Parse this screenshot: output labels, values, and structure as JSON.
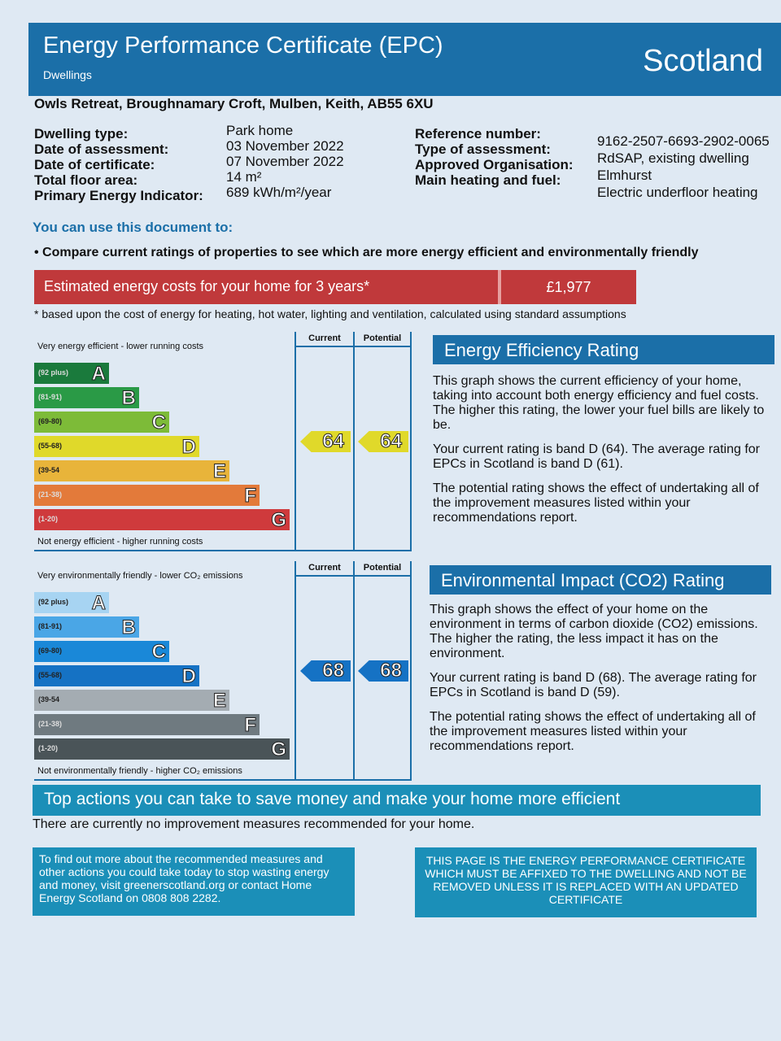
{
  "header": {
    "title": "Energy Performance Certificate (EPC)",
    "subtitle": "Dwellings",
    "region": "Scotland"
  },
  "address": "Owls Retreat, Broughnamary Croft, Mulben, Keith, AB55 6XU",
  "details_left": [
    {
      "label": "Dwelling type:",
      "value": "Park home"
    },
    {
      "label": "Date of assessment:",
      "value": "03 November 2022"
    },
    {
      "label": "Date of certificate:",
      "value": "07 November 2022"
    },
    {
      "label": "Total floor area:",
      "value": "14 m²"
    },
    {
      "label": "Primary Energy Indicator:",
      "value": "689 kWh/m²/year"
    }
  ],
  "details_right": [
    {
      "label": "Reference number:",
      "value": "9162-2507-6693-2902-0065"
    },
    {
      "label": "Type of assessment:",
      "value": "RdSAP, existing dwelling"
    },
    {
      "label": "Approved Organisation:",
      "value": "Elmhurst"
    },
    {
      "label": "Main heating and fuel:",
      "value": "Electric underfloor heating"
    }
  ],
  "use_heading": "You can use this document to:",
  "use_bullet": "Compare current ratings of properties to see which are more energy efficient and environmentally friendly",
  "cost": {
    "label": "Estimated energy costs for your home for 3 years*",
    "value": "£1,977"
  },
  "cost_note": "* based upon the cost of energy for heating, hot water, lighting and ventilation, calculated using standard assumptions",
  "energy": {
    "top": "Very energy efficient - lower running costs",
    "bottom": "Not energy efficient - higher running costs",
    "current_label": "Current",
    "potential_label": "Potential",
    "current": "64",
    "potential": "64",
    "current_band": 3,
    "potential_band": 3,
    "bands": [
      {
        "range": "(92 plus)",
        "letter": "A",
        "color": "#1a7a3c"
      },
      {
        "range": "(81-91)",
        "letter": "B",
        "color": "#2a9a46"
      },
      {
        "range": "(69-80)",
        "letter": "C",
        "color": "#7dbb38"
      },
      {
        "range": "(55-68)",
        "letter": "D",
        "color": "#e0d92a"
      },
      {
        "range": "(39-54",
        "letter": "E",
        "color": "#e8b43a"
      },
      {
        "range": "(21-38)",
        "letter": "F",
        "color": "#e37a3a"
      },
      {
        "range": "(1-20)",
        "letter": "G",
        "color": "#cf3a3c"
      }
    ],
    "arrow_color": "#e0d92a"
  },
  "environment": {
    "top": "Very environmentally friendly - lower CO₂ emissions",
    "bottom": "Not environmentally friendly - higher CO₂ emissions",
    "current_label": "Current",
    "potential_label": "Potential",
    "current": "68",
    "potential": "68",
    "current_band": 3,
    "potential_band": 3,
    "bands": [
      {
        "range": "(92 plus)",
        "letter": "A",
        "color": "#a7d4f2"
      },
      {
        "range": "(81-91)",
        "letter": "B",
        "color": "#4aa6e6"
      },
      {
        "range": "(69-80)",
        "letter": "C",
        "color": "#1a88d8"
      },
      {
        "range": "(55-68)",
        "letter": "D",
        "color": "#1572c4"
      },
      {
        "range": "(39-54",
        "letter": "E",
        "color": "#a4acb2"
      },
      {
        "range": "(21-38)",
        "letter": "F",
        "color": "#6f7a80"
      },
      {
        "range": "(1-20)",
        "letter": "G",
        "color": "#4a5458"
      }
    ],
    "arrow_color": "#1572c4"
  },
  "eer": {
    "heading": "Energy Efficiency Rating",
    "p1": "This graph shows the current efficiency of your home, taking into account both energy efficiency and fuel costs. The higher this rating, the lower your fuel bills are likely to be.",
    "p2": "Your current rating is band D (64). The average rating for EPCs in Scotland is band D (61).",
    "p3": "The potential rating shows the effect of undertaking all of the improvement measures listed within your recommendations report."
  },
  "eir": {
    "heading": "Environmental Impact (CO2) Rating",
    "p1": "This graph shows the effect of your home on the environment in terms of carbon dioxide (CO2) emissions. The higher the rating, the less impact it has on the environment.",
    "p2": "Your current rating is band D (68). The average rating for EPCs in Scotland is band D (59).",
    "p3": "The potential rating shows the effect of undertaking all of the improvement measures listed within your recommendations report."
  },
  "top_actions": {
    "heading": "Top actions you can take to save money and make your home more efficient",
    "text": "There are currently no improvement measures recommended for your home."
  },
  "more_info": "To find out more about the recommended measures and other actions you could take today to stop wasting energy and money, visit greenerscotland.org or contact Home Energy Scotland on 0808 808 2282.",
  "warning": "THIS PAGE IS THE ENERGY PERFORMANCE CERTIFICATE WHICH MUST BE AFFIXED TO THE DWELLING AND NOT BE REMOVED UNLESS IT IS REPLACED WITH AN UPDATED CERTIFICATE"
}
